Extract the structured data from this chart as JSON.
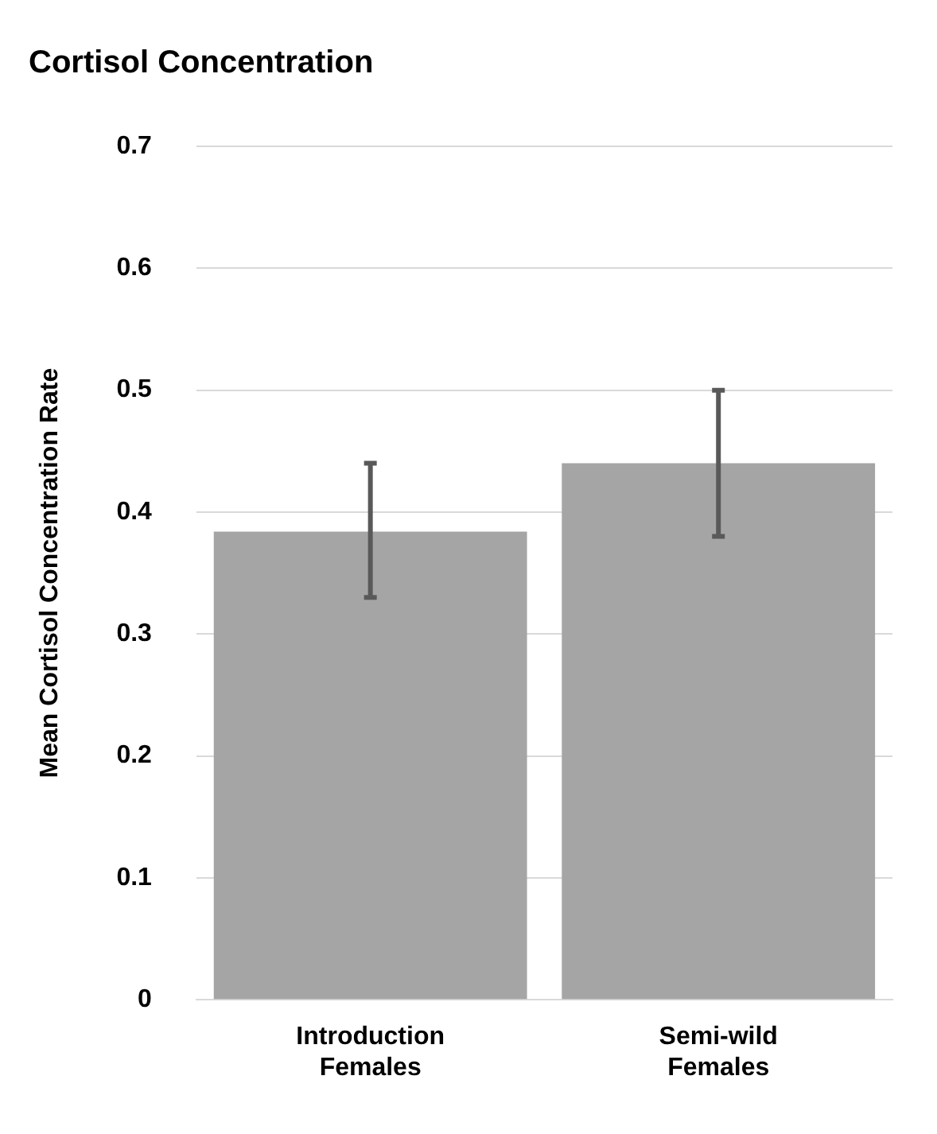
{
  "chart_data": {
    "type": "bar",
    "title": "Cortisol Concentration",
    "ylabel": "Mean Cortisol Concentration Rate",
    "categories": [
      "Introduction Females",
      "Semi-wild Females"
    ],
    "values": [
      0.384,
      0.44
    ],
    "errors": [
      [
        0.33,
        0.44
      ],
      [
        0.38,
        0.5
      ]
    ],
    "color": "#a5a5a5",
    "ylim": [
      0,
      0.7
    ],
    "yticks": [
      0,
      0.1,
      0.2,
      0.3,
      0.4,
      0.5,
      0.6,
      0.7
    ],
    "grid": "y",
    "legend": false
  }
}
